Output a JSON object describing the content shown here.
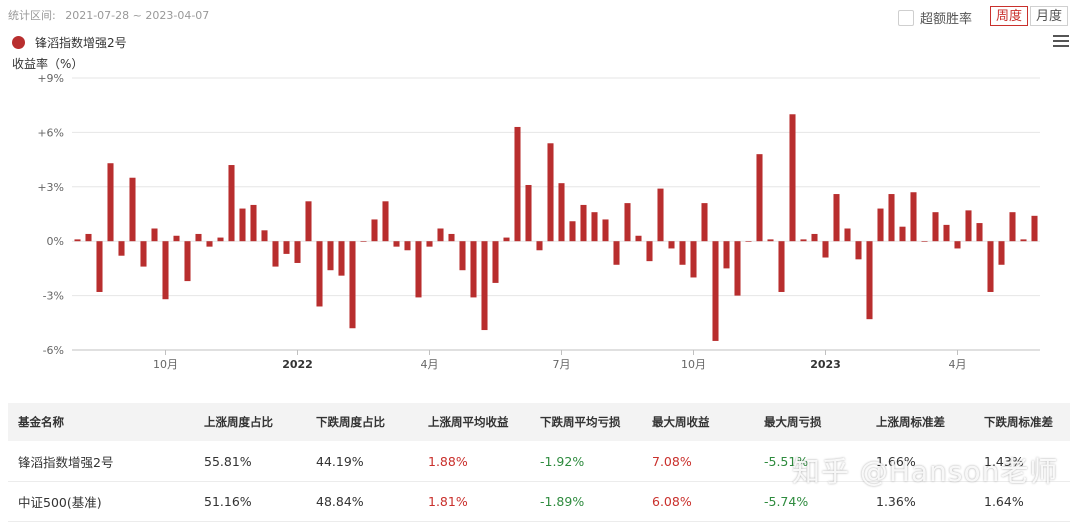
{
  "header": {
    "range_label": "统计区间:",
    "range_value": "2021-07-28 ~ 2023-04-07",
    "excess_label": "超额胜率",
    "week_button": "周度",
    "month_button": "月度"
  },
  "legend": {
    "series_name": "锋滔指数增强2号",
    "color": "#b82e2e"
  },
  "menu_icon": "hamburger-menu-icon",
  "chart_data": {
    "type": "bar",
    "title": "",
    "ylabel": "收益率（%）",
    "y_ticks": [
      "+9%",
      "+6%",
      "+3%",
      "0%",
      "-3%",
      "-6%"
    ],
    "y_tick_values": [
      9,
      6,
      3,
      0,
      -3,
      -6
    ],
    "ylim": [
      -6,
      9
    ],
    "x_tick_labels": [
      "10月",
      "2022",
      "4月",
      "7月",
      "10月",
      "2023",
      "4月"
    ],
    "x_tick_positions": [
      8,
      20,
      32,
      44,
      56,
      68,
      80
    ],
    "bar_color": "#b82e2e",
    "grid": "horizontal",
    "series": [
      {
        "name": "锋滔指数增强2号",
        "values": [
          0.1,
          0.4,
          -2.8,
          4.3,
          -0.8,
          3.5,
          -1.4,
          0.7,
          -3.2,
          0.3,
          -2.2,
          0.4,
          -0.3,
          0.2,
          4.2,
          1.8,
          2.0,
          0.6,
          -1.4,
          -0.7,
          -1.2,
          2.2,
          -3.6,
          -1.6,
          -1.9,
          -4.8,
          0.0,
          1.2,
          2.2,
          -0.3,
          -0.5,
          -3.1,
          -0.3,
          0.7,
          0.4,
          -1.6,
          -3.1,
          -4.9,
          -2.3,
          0.2,
          6.3,
          3.1,
          -0.5,
          5.4,
          3.2,
          1.1,
          2.0,
          1.6,
          1.2,
          -1.3,
          2.1,
          0.3,
          -1.1,
          2.9,
          -0.4,
          -1.3,
          -2.0,
          2.1,
          -5.5,
          -1.5,
          -3.0,
          0.0,
          4.8,
          0.1,
          -2.8,
          7.0,
          0.1,
          0.4,
          -0.9,
          2.6,
          0.7,
          -1.0,
          -4.3,
          1.8,
          2.6,
          0.8,
          2.7,
          0.0,
          1.6,
          0.9,
          -0.4,
          1.7,
          1.0,
          -2.8,
          -1.3,
          1.6,
          0.1,
          1.4
        ]
      }
    ]
  },
  "table": {
    "headers": [
      "基金名称",
      "上涨周度占比",
      "下跌周度占比",
      "上涨周平均收益",
      "下跌周平均亏损",
      "最大周收益",
      "最大周亏损",
      "上涨周标准差",
      "下跌周标准差"
    ],
    "rows": [
      [
        "锋滔指数增强2号",
        "55.81%",
        "44.19%",
        "1.88%",
        "-1.92%",
        "7.08%",
        "-5.51%",
        "1.66%",
        "1.43%"
      ],
      [
        "中证500(基准)",
        "51.16%",
        "48.84%",
        "1.81%",
        "-1.89%",
        "6.08%",
        "-5.74%",
        "1.36%",
        "1.64%"
      ]
    ]
  },
  "watermark": "知乎 @Hanson老师"
}
